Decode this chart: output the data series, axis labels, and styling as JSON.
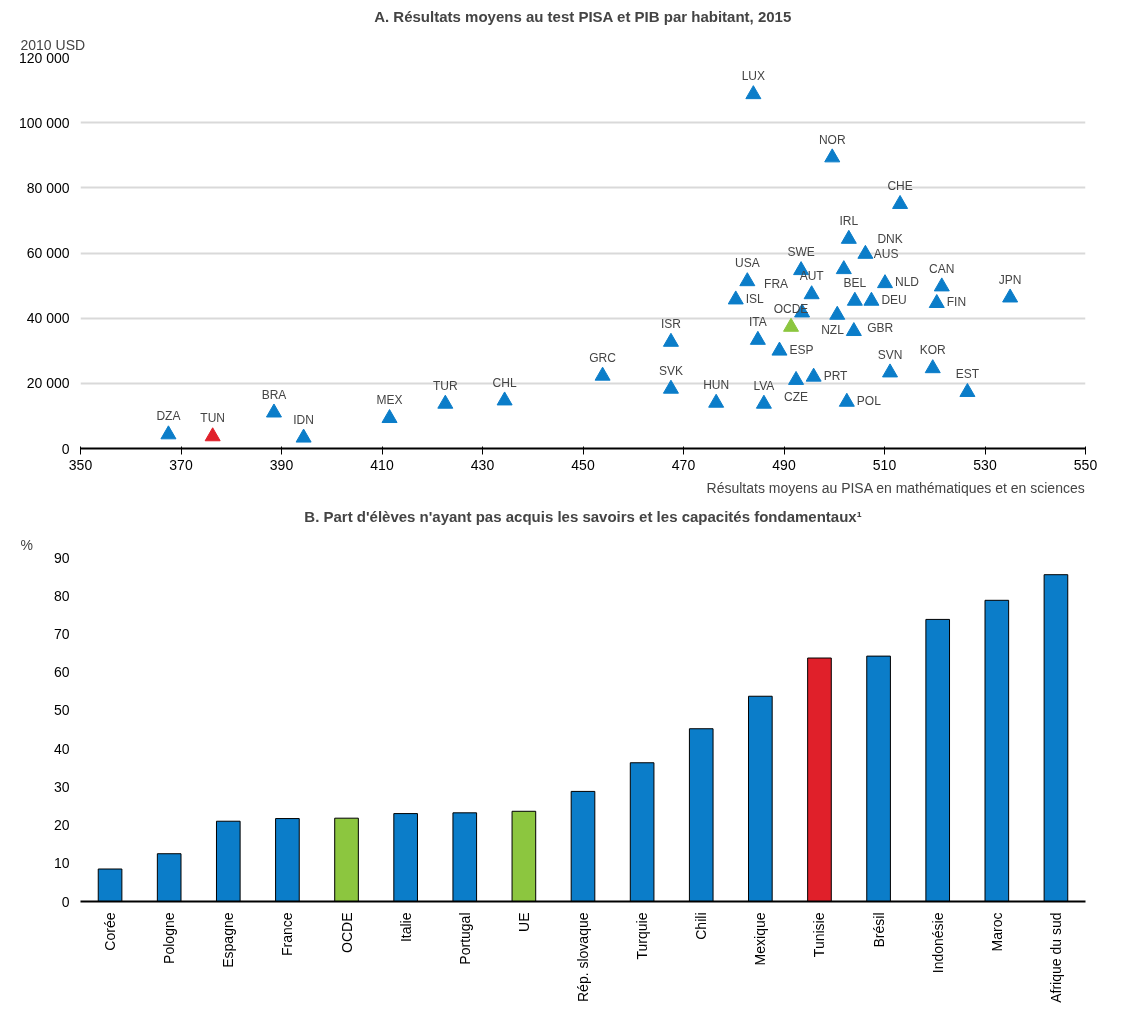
{
  "chart_data": [
    {
      "type": "scatter",
      "title": "A. Résultats moyens au test PISA et PIB par habitant, 2015",
      "xlabel": "Résultats moyens au PISA en mathématiques et en sciences",
      "ylabel": "2010 USD",
      "marker": "triangle",
      "grid": "y",
      "x": [
        367.5,
        376.3,
        388.5,
        394.4,
        411.5,
        422.6,
        434.4,
        453.9,
        467.5,
        467.5,
        476.5,
        482.7,
        480.4,
        484.8,
        483.9,
        486.0,
        489.1,
        491.4,
        493.6,
        492.4,
        493.4,
        495.5,
        495.9,
        499.6,
        501.9,
        500.6,
        504.1,
        502.9,
        506.2,
        507.4,
        503.9,
        502.5,
        510.1,
        511.1,
        513.1,
        519.6,
        520.4,
        521.4,
        526.5,
        535.0
      ],
      "values": [
        4300,
        3700,
        11000,
        3300,
        9300,
        13700,
        14700,
        22300,
        32700,
        18300,
        14000,
        51300,
        45700,
        33300,
        108700,
        13700,
        30000,
        37300,
        41700,
        21000,
        54700,
        47300,
        22000,
        89300,
        55000,
        41000,
        45300,
        64300,
        59700,
        45300,
        36000,
        14300,
        50700,
        23300,
        75000,
        24600,
        44600,
        49700,
        17300,
        46300
      ],
      "colors": [
        "#0b7dc9",
        "#e0202a",
        "#0b7dc9",
        "#0b7dc9",
        "#0b7dc9",
        "#0b7dc9",
        "#0b7dc9",
        "#0b7dc9",
        "#0b7dc9",
        "#0b7dc9",
        "#0b7dc9",
        "#0b7dc9",
        "#0b7dc9",
        "#0b7dc9",
        "#0b7dc9",
        "#0b7dc9",
        "#0b7dc9",
        "#8cc63f",
        "#0b7dc9",
        "#0b7dc9",
        "#0b7dc9",
        "#0b7dc9",
        "#0b7dc9",
        "#0b7dc9",
        "#0b7dc9",
        "#0b7dc9",
        "#0b7dc9",
        "#0b7dc9",
        "#0b7dc9",
        "#0b7dc9",
        "#0b7dc9",
        "#0b7dc9",
        "#0b7dc9",
        "#0b7dc9",
        "#0b7dc9",
        "#0b7dc9",
        "#0b7dc9",
        "#0b7dc9",
        "#0b7dc9",
        "#0b7dc9"
      ],
      "annotations": [
        {
          "text": "DZA",
          "x": 367.5,
          "y": 4300
        },
        {
          "text": "TUN",
          "x": 376.3,
          "y": 3700
        },
        {
          "text": "BRA",
          "x": 388.5,
          "y": 11000
        },
        {
          "text": "IDN",
          "x": 394.4,
          "y": 3300
        },
        {
          "text": "MEX",
          "x": 411.5,
          "y": 9300
        },
        {
          "text": "TUR",
          "x": 422.6,
          "y": 13700
        },
        {
          "text": "CHL",
          "x": 434.4,
          "y": 14700
        },
        {
          "text": "GRC",
          "x": 453.9,
          "y": 22300
        },
        {
          "text": "ISR",
          "x": 467.5,
          "y": 32700
        },
        {
          "text": "SVK",
          "x": 467.5,
          "y": 18300
        },
        {
          "text": "HUN",
          "x": 476.5,
          "y": 14000
        },
        {
          "text": "USA",
          "x": 482.7,
          "y": 51300
        },
        {
          "text": "ISL",
          "x": 480.4,
          "y": 45700
        },
        {
          "text": "ITA",
          "x": 484.8,
          "y": 33300
        },
        {
          "text": "LUX",
          "x": 483.9,
          "y": 108700
        },
        {
          "text": "LVA",
          "x": 486.0,
          "y": 13700
        },
        {
          "text": "ESP",
          "x": 489.1,
          "y": 30000
        },
        {
          "text": "OCDE",
          "x": 491.4,
          "y": 37300
        },
        {
          "text": "FRA",
          "x": 493.6,
          "y": 41700
        },
        {
          "text": "CZE",
          "x": 492.4,
          "y": 21000
        },
        {
          "text": "SWE",
          "x": 493.4,
          "y": 54700
        },
        {
          "text": "AUT",
          "x": 495.5,
          "y": 47300
        },
        {
          "text": "PRT",
          "x": 495.9,
          "y": 22000
        },
        {
          "text": "NOR",
          "x": 499.6,
          "y": 89300
        },
        {
          "text": "AUS",
          "x": 501.9,
          "y": 55000
        },
        {
          "text": "GBR",
          "x": 500.6,
          "y": 41000
        },
        {
          "text": "BEL",
          "x": 504.1,
          "y": 45300
        },
        {
          "text": "IRL",
          "x": 502.9,
          "y": 64300
        },
        {
          "text": "DNK",
          "x": 506.2,
          "y": 59700
        },
        {
          "text": "DEU",
          "x": 507.4,
          "y": 45300
        },
        {
          "text": "NZL",
          "x": 503.9,
          "y": 36000
        },
        {
          "text": "POL",
          "x": 502.5,
          "y": 14300
        },
        {
          "text": "NLD",
          "x": 510.1,
          "y": 50700
        },
        {
          "text": "SVN",
          "x": 511.1,
          "y": 23300
        },
        {
          "text": "CHE",
          "x": 513.1,
          "y": 75000
        },
        {
          "text": "KOR",
          "x": 519.6,
          "y": 24600
        },
        {
          "text": "FIN",
          "x": 520.4,
          "y": 44600
        },
        {
          "text": "CAN",
          "x": 521.4,
          "y": 49700
        },
        {
          "text": "EST",
          "x": 526.5,
          "y": 17300
        },
        {
          "text": "JPN",
          "x": 535.0,
          "y": 46300
        }
      ],
      "xlim": [
        350,
        550
      ],
      "xticks": [
        350,
        370,
        390,
        410,
        430,
        450,
        470,
        490,
        510,
        530,
        550
      ],
      "ylim": [
        0,
        120000
      ],
      "yticks": [
        0,
        {
          "value": 20000,
          "label": "20 000"
        },
        {
          "value": 40000,
          "label": "40 000"
        },
        {
          "value": 60000,
          "label": "60 000"
        },
        {
          "value": 80000,
          "label": "80 000"
        },
        {
          "value": 100000,
          "label": "100 000"
        },
        {
          "value": 120000,
          "label": "120 000"
        }
      ]
    },
    {
      "type": "bar",
      "title": "B. Part d'élèves n'ayant pas acquis les savoirs et les capacités fondamentaux¹",
      "ylabel": "%",
      "grid": false,
      "categories": [
        "Corée",
        "Pologne",
        "Espagne",
        "France",
        "OCDE",
        "Italie",
        "Portugal",
        "UE",
        "Rép. slovaque",
        "Turquie",
        "Chili",
        "Mexique",
        "Tunisie",
        "Brésil",
        "Indonésie",
        "Maroc",
        "Afrique du sud"
      ],
      "values": [
        8.5,
        12.5,
        21,
        21.7,
        21.8,
        23,
        23.2,
        23.6,
        28.8,
        36.3,
        45.2,
        53.7,
        63.7,
        64.2,
        73.8,
        78.8,
        85.5
      ],
      "colors": [
        "#0b7dc9",
        "#0b7dc9",
        "#0b7dc9",
        "#0b7dc9",
        "#8cc63f",
        "#0b7dc9",
        "#0b7dc9",
        "#8cc63f",
        "#0b7dc9",
        "#0b7dc9",
        "#0b7dc9",
        "#0b7dc9",
        "#e0202a",
        "#0b7dc9",
        "#0b7dc9",
        "#0b7dc9",
        "#0b7dc9"
      ],
      "ylim": [
        0,
        90
      ],
      "yticks": [
        0,
        10,
        20,
        30,
        40,
        50,
        60,
        70,
        80,
        90
      ]
    }
  ]
}
